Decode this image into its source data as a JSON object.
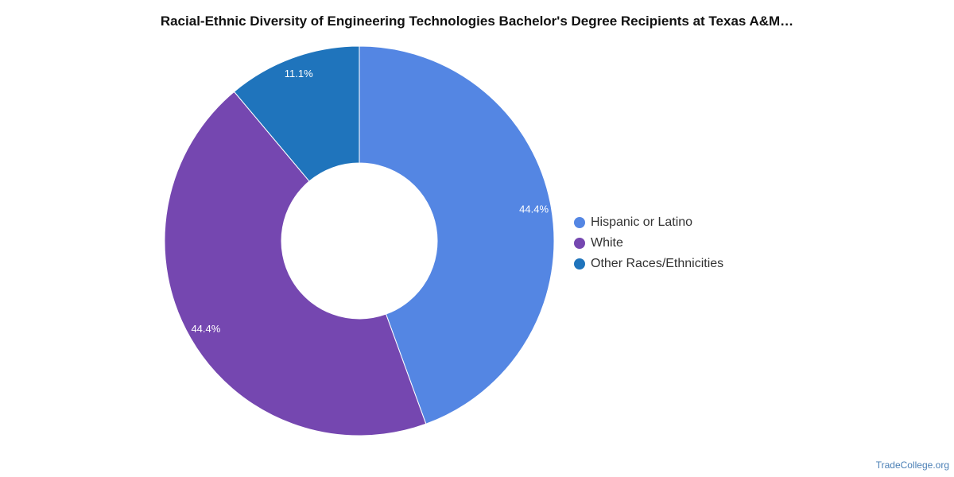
{
  "title": "Racial-Ethnic Diversity of Engineering Technologies Bachelor's Degree Recipients at Texas A&M…",
  "watermark": "TradeCollege.org",
  "chart_data": {
    "type": "pie",
    "donut": true,
    "slices": [
      {
        "label": "Hispanic or Latino",
        "value": 44.4,
        "display": "44.4%",
        "color": "#5486e3"
      },
      {
        "label": "White",
        "value": 44.4,
        "display": "44.4%",
        "color": "#7547b0"
      },
      {
        "label": "Other Races/Ethnicities",
        "value": 11.1,
        "display": "11.1%",
        "color": "#1f74bc"
      }
    ],
    "legend_position": "right"
  }
}
